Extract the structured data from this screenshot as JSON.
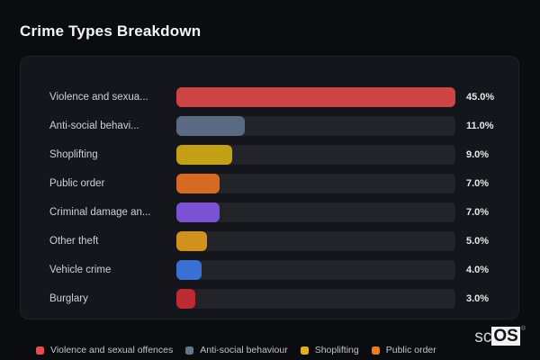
{
  "page": {
    "title": "Crime Types Breakdown"
  },
  "chart_data": {
    "type": "bar",
    "orientation": "horizontal",
    "title": "Crime Types Breakdown",
    "categories": [
      "Violence and sexua...",
      "Anti-social behavi...",
      "Shoplifting",
      "Public order",
      "Criminal damage an...",
      "Other theft",
      "Vehicle crime",
      "Burglary"
    ],
    "values": [
      45.0,
      11.0,
      9.0,
      7.0,
      7.0,
      5.0,
      4.0,
      3.0
    ],
    "value_labels": [
      "45.0%",
      "11.0%",
      "9.0%",
      "7.0%",
      "7.0%",
      "5.0%",
      "4.0%",
      "3.0%"
    ],
    "bar_colors": [
      "#cc4444",
      "#5a6a83",
      "#c4a016",
      "#d56a22",
      "#7c52d4",
      "#d0921c",
      "#3a70d4",
      "#bd2a31"
    ],
    "max_value": 45.0,
    "value_suffix": "%",
    "xlim": [
      0,
      45
    ],
    "grid": false,
    "legend_position": "bottom",
    "track_color": "#232429"
  },
  "legend": {
    "items": [
      {
        "label": "Violence and sexual offences",
        "color": "#e14f4f"
      },
      {
        "label": "Anti-social behaviour",
        "color": "#64748b"
      },
      {
        "label": "Shoplifting",
        "color": "#e3af1c"
      },
      {
        "label": "Public order",
        "color": "#ea7d18"
      }
    ]
  },
  "watermark": {
    "prefix": "sc",
    "suffix": "OS",
    "registered": "®"
  },
  "colors": {
    "page_bg": "#0b0c10",
    "panel_bg": "#15161b",
    "title_text": "#f4f5f7",
    "label_text": "#ccd0d7",
    "value_text": "#e4e6ea"
  }
}
